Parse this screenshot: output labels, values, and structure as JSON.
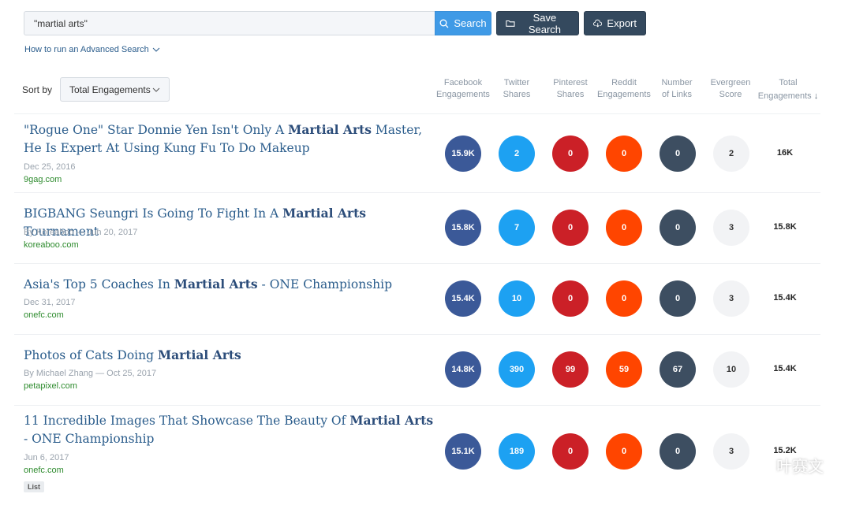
{
  "search": {
    "value": "\"martial arts\"",
    "button_label": "Search"
  },
  "toolbar": {
    "save_label": "Save Search",
    "export_label": "Export"
  },
  "advanced_link": "How to run an Advanced Search",
  "sort": {
    "label": "Sort by",
    "selected": "Total Engagements"
  },
  "columns": [
    {
      "line1": "Facebook",
      "line2": "Engagements"
    },
    {
      "line1": "Twitter",
      "line2": "Shares"
    },
    {
      "line1": "Pinterest",
      "line2": "Shares"
    },
    {
      "line1": "Reddit",
      "line2": "Engagements"
    },
    {
      "line1": "Number",
      "line2": "of Links"
    },
    {
      "line1": "Evergreen",
      "line2": "Score"
    },
    {
      "line1": "Total",
      "line2": "Engagements"
    }
  ],
  "colors": {
    "facebook": "#3b5998",
    "twitter": "#1da1f2",
    "pinterest": "#cb2027",
    "reddit": "#ff4500",
    "links": "#3d4e61",
    "evergreen": "#f2f3f5",
    "accent": "#3f9ae6",
    "title": "#2b5d8c",
    "domain": "#2e8b2e"
  },
  "results": [
    {
      "title_parts": [
        "\"Rogue One\" Star Donnie Yen Isn't Only A ",
        "Martial Arts",
        " Master, He Is Expert At Using Kung Fu To Do Makeup"
      ],
      "meta": "Dec 25, 2016",
      "domain": "9gag.com",
      "facebook": "15.9K",
      "twitter": "2",
      "pinterest": "0",
      "reddit": "0",
      "links": "0",
      "evergreen": "2",
      "total": "16K"
    },
    {
      "title_parts": [
        "BIGBANG Seungri Is Going To Fight In A ",
        "Martial Arts",
        " Tournament"
      ],
      "meta": "By Koreaboo — Jun 20, 2017",
      "domain": "koreaboo.com",
      "facebook": "15.8K",
      "twitter": "7",
      "pinterest": "0",
      "reddit": "0",
      "links": "0",
      "evergreen": "3",
      "total": "15.8K"
    },
    {
      "title_parts": [
        "Asia's Top 5 Coaches In ",
        "Martial Arts",
        " - ONE Championship"
      ],
      "meta": "Dec 31, 2017",
      "domain": "onefc.com",
      "facebook": "15.4K",
      "twitter": "10",
      "pinterest": "0",
      "reddit": "0",
      "links": "0",
      "evergreen": "3",
      "total": "15.4K"
    },
    {
      "title_parts": [
        "Photos of Cats Doing ",
        "Martial Arts",
        ""
      ],
      "meta": "By Michael Zhang — Oct 25, 2017",
      "domain": "petapixel.com",
      "facebook": "14.8K",
      "twitter": "390",
      "pinterest": "99",
      "reddit": "59",
      "links": "67",
      "evergreen": "10",
      "total": "15.4K"
    },
    {
      "title_parts": [
        "11 Incredible Images That Showcase The Beauty Of ",
        "Martial Arts",
        " - ONE Championship"
      ],
      "meta": "Jun 6, 2017",
      "domain": "onefc.com",
      "badge": "List",
      "facebook": "15.1K",
      "twitter": "189",
      "pinterest": "0",
      "reddit": "0",
      "links": "0",
      "evergreen": "3",
      "total": "15.2K"
    }
  ],
  "watermark": "叶赛文"
}
